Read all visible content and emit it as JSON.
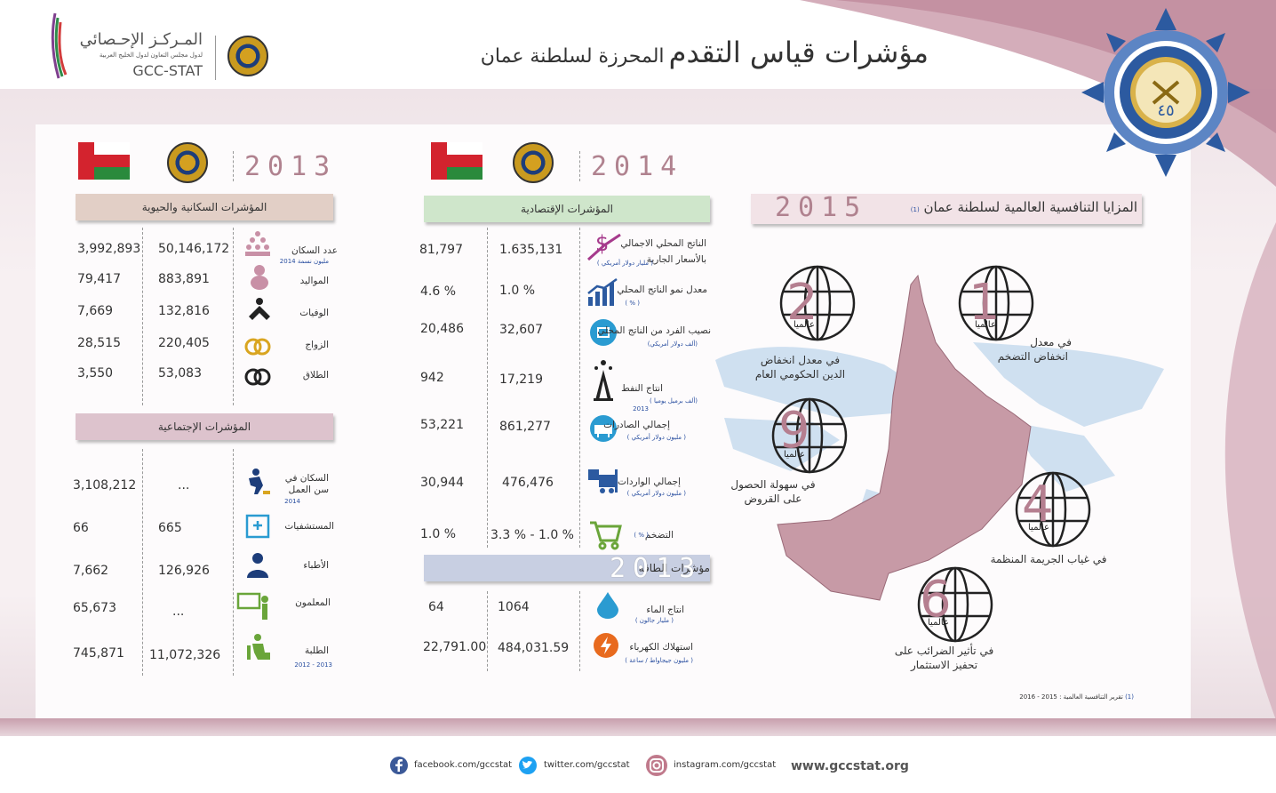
{
  "title": {
    "main": "مؤشرات قياس التقدم",
    "rest": "المحرزة لسلطنة عمان"
  },
  "logo": {
    "ar": "المـركـز الإحـصائي",
    "sub": "لدول مجلس التعاون لدول الخليج العربية",
    "en": "GCC-STAT"
  },
  "badge_text": "٤٥",
  "section_left": {
    "year": "2013",
    "pop_header": "المؤشرات السكانية والحيوية",
    "pop_rows": [
      {
        "label": "عدد السكان",
        "sub": "مليون نسمة 2014",
        "gcc": "50,146,172",
        "oman": "3,992,893"
      },
      {
        "label": "المواليد",
        "sub": "",
        "gcc": "883,891",
        "oman": "79,417"
      },
      {
        "label": "الوفيات",
        "sub": "",
        "gcc": "132,816",
        "oman": "7,669"
      },
      {
        "label": "الزواج",
        "sub": "",
        "gcc": "220,405",
        "oman": "28,515"
      },
      {
        "label": "الطلاق",
        "sub": "",
        "gcc": "53,083",
        "oman": "3,550"
      }
    ],
    "soc_header": "المؤشرات الإجتماعية",
    "soc_rows": [
      {
        "label": "السكان في",
        "label2": "سن العمل",
        "sub": "2014",
        "gcc": "...",
        "oman": "3,108,212"
      },
      {
        "label": "المستشفيات",
        "label2": "",
        "sub": "",
        "gcc": "665",
        "oman": "66"
      },
      {
        "label": "الأطباء",
        "label2": "",
        "sub": "",
        "gcc": "126,926",
        "oman": "7,662"
      },
      {
        "label": "المعلمون",
        "label2": "",
        "sub": "",
        "gcc": "...",
        "oman": "65,673"
      },
      {
        "label": "الطلبة",
        "label2": "",
        "sub": "2013 - 2012",
        "gcc": "11,072,326",
        "oman": "745,871"
      }
    ]
  },
  "section_mid": {
    "year": "2014",
    "eco_header": "المؤشرات الإقتصادية",
    "eco_rows": [
      {
        "label": "الناتج المحلي الاجمالي",
        "label2": "بالأسعار الجارية",
        "sub": "( مليار دولار أمريكي )",
        "gcc": "1.635,131",
        "oman": "81,797"
      },
      {
        "label": "معدل نمو الناتج المحلي",
        "label2": "",
        "sub": "( % )",
        "gcc": "1.0 %",
        "oman": "4.6 %"
      },
      {
        "label": "نصيب الفرد من الناتج المحلي",
        "label2": "",
        "sub": "(ألف دولار أمريكي)",
        "gcc": "32,607",
        "oman": "20,486"
      },
      {
        "label": "انتاج النفط",
        "label2": "",
        "sub": "(ألف برميل يوميا )",
        "sub2": "2013",
        "gcc": "17,219",
        "oman": "942"
      },
      {
        "label": "إجمالي الصادرات",
        "label2": "",
        "sub": "( مليون دولار أمريكي )",
        "gcc": "861,277",
        "oman": "53,221"
      },
      {
        "label": "إجمالي الواردات",
        "label2": "",
        "sub": "( مليون دولار أمريكي )",
        "gcc": "476,476",
        "oman": "30,944"
      },
      {
        "label": "التضخم",
        "label2": "",
        "sub": "( % )",
        "gcc": "3.3 % - 1.0 %",
        "oman": "1.0 %"
      }
    ],
    "energy_header": "مؤشرات الطاقة",
    "energy_year": "2013",
    "energy_rows": [
      {
        "label": "انتاج الماء",
        "sub": "( مليار جالون )",
        "gcc": "1064",
        "oman": "64"
      },
      {
        "label": "استهلاك الكهرباء",
        "sub": "( مليون جيجاواط / ساعة )",
        "gcc": "484,031.59",
        "oman": "22,791.00"
      }
    ]
  },
  "section_right": {
    "header": "المزايا التنافسية العالمية لسلطنة عمان",
    "note_marker": "(1)",
    "year": "2015",
    "rank_word": "عالميا",
    "ranks": [
      {
        "rank": "1",
        "text": "في معدل",
        "text2": "انخفاض التضخم"
      },
      {
        "rank": "2",
        "text": "في معدل انخفاض",
        "text2": "الدين الحكومي العام"
      },
      {
        "rank": "9",
        "text": "في سهولة الحصول",
        "text2": "على القروض"
      },
      {
        "rank": "4",
        "text": "في غياب الجريمة المنظمة",
        "text2": ""
      },
      {
        "rank": "6",
        "text": "في تأثير الضرائب على",
        "text2": "تحفيز الاستثمار"
      }
    ],
    "footnote": "تقرير التنافسية العالمية : 2015 - 2016",
    "footnote_marker": "(1)"
  },
  "footer": {
    "facebook": "facebook.com/gccstat",
    "twitter": "twitter.com/gccstat",
    "instagram": "instagram.com/gccstat",
    "website": "www.gccstat.org"
  },
  "colors": {
    "accent": "#b0828f",
    "pop_header": "#e2cfc6",
    "soc_header": "#ddc3cd",
    "eco_header": "#cfe6cb",
    "energy_header": "#c8cfe2",
    "map_oman": "#c79aa6",
    "map_land": "#cfe0f0"
  }
}
